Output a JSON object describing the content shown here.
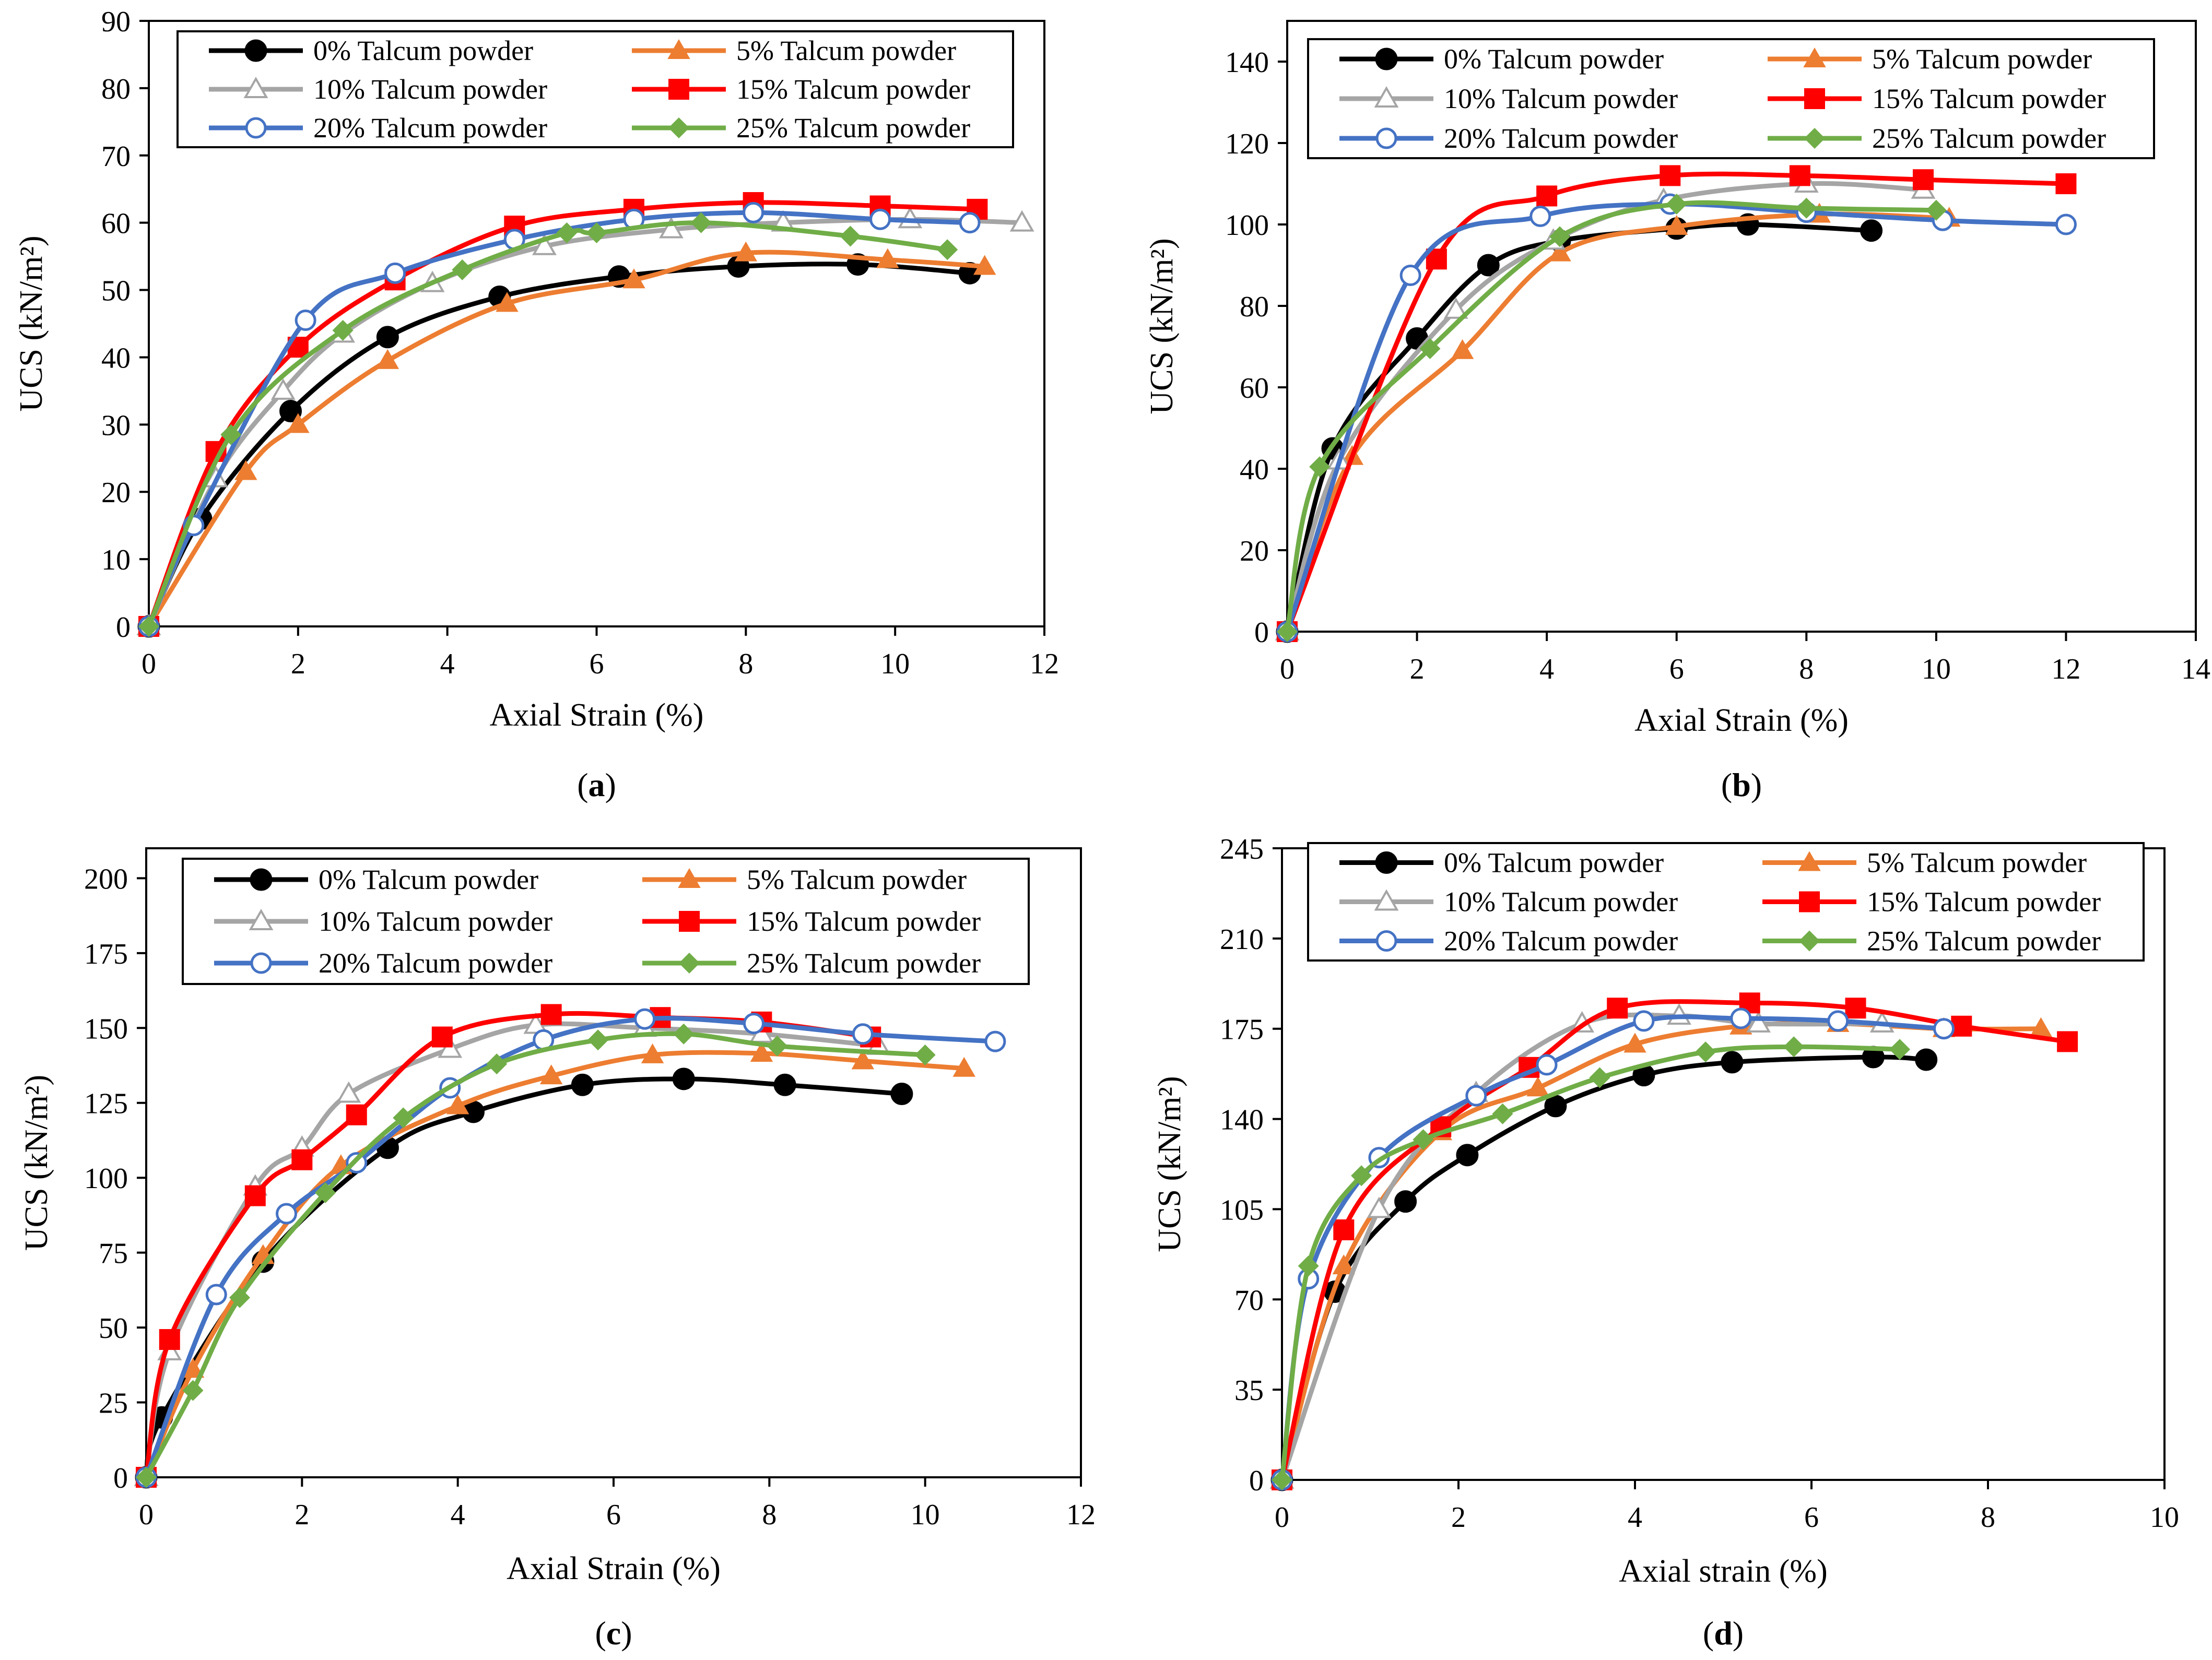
{
  "series_styles": [
    {
      "color": "#000000",
      "marker": "circle-filled"
    },
    {
      "color": "#ED7D31",
      "marker": "triangle-filled"
    },
    {
      "color": "#A5A5A5",
      "marker": "triangle-open"
    },
    {
      "color": "#FF0000",
      "marker": "square-filled"
    },
    {
      "color": "#4472C4",
      "marker": "circle-open"
    },
    {
      "color": "#70AD47",
      "marker": "diamond-filled"
    }
  ],
  "chart_data": [
    {
      "type": "line",
      "panel_label": "a",
      "xlabel": "Axial Strain (%)",
      "ylabel": "UCS (kN/m²)",
      "xlim": [
        0,
        12
      ],
      "ylim": [
        0,
        90
      ],
      "xticks": [
        0,
        2,
        4,
        6,
        8,
        10,
        12
      ],
      "yticks": [
        0,
        10,
        20,
        30,
        40,
        50,
        60,
        70,
        80,
        90
      ],
      "legend_position": "top",
      "series": [
        {
          "name": "0% Talcum powder",
          "x": [
            0,
            0.7,
            1.9,
            3.2,
            4.7,
            6.3,
            7.9,
            9.5,
            11.0
          ],
          "y": [
            0,
            16,
            32,
            43,
            49,
            52,
            53.5,
            53.8,
            52.5
          ]
        },
        {
          "name": "5% Talcum powder",
          "x": [
            0,
            1.3,
            2.0,
            3.2,
            4.8,
            6.5,
            8.0,
            9.9,
            11.2
          ],
          "y": [
            0,
            23,
            30,
            39.5,
            48,
            51.5,
            55.5,
            54.5,
            53.5
          ]
        },
        {
          "name": "10% Talcum powder",
          "x": [
            0,
            0.9,
            1.8,
            2.6,
            3.8,
            5.3,
            7.0,
            8.5,
            10.2,
            11.7
          ],
          "y": [
            0,
            22,
            35,
            43.5,
            51,
            56.5,
            59,
            60,
            60.5,
            60
          ]
        },
        {
          "name": "15% Talcum powder",
          "x": [
            0,
            0.9,
            2.0,
            3.3,
            4.9,
            6.5,
            8.1,
            9.8,
            11.1
          ],
          "y": [
            0,
            26,
            41.5,
            51.5,
            59.5,
            62,
            63,
            62.5,
            62
          ]
        },
        {
          "name": "20% Talcum powder",
          "x": [
            0,
            0.6,
            2.1,
            3.3,
            4.9,
            6.5,
            8.1,
            9.8,
            11.0
          ],
          "y": [
            0,
            15,
            45.5,
            52.5,
            57.5,
            60.5,
            61.5,
            60.5,
            60
          ]
        },
        {
          "name": "25% Talcum powder",
          "x": [
            0,
            1.1,
            2.6,
            4.2,
            5.6,
            6.0,
            7.4,
            9.4,
            10.7
          ],
          "y": [
            0,
            28.5,
            44,
            53,
            58.5,
            58.5,
            60,
            58,
            56
          ]
        }
      ]
    },
    {
      "type": "line",
      "panel_label": "b",
      "xlabel": "Axial Strain (%)",
      "ylabel": "UCS (kN/m²)",
      "xlim": [
        0,
        14
      ],
      "ylim": [
        0,
        150
      ],
      "xticks": [
        0,
        2,
        4,
        6,
        8,
        10,
        12,
        14
      ],
      "yticks": [
        0,
        20,
        40,
        60,
        80,
        100,
        120,
        140
      ],
      "legend_position": "top",
      "series": [
        {
          "name": "0% Talcum powder",
          "x": [
            0,
            0.7,
            2.0,
            3.1,
            4.2,
            6.0,
            7.1,
            9.0
          ],
          "y": [
            0,
            45,
            72,
            90,
            96,
            99,
            100,
            98.5
          ]
        },
        {
          "name": "5% Talcum powder",
          "x": [
            0,
            1.0,
            2.7,
            4.2,
            6.0,
            8.2,
            10.2
          ],
          "y": [
            0,
            43,
            69,
            93,
            99.5,
            102.5,
            101.5
          ]
        },
        {
          "name": "10% Talcum powder",
          "x": [
            0,
            0.8,
            2.6,
            4.1,
            5.8,
            8.0,
            9.8
          ],
          "y": [
            0,
            42,
            79,
            96,
            106,
            110,
            108.5
          ]
        },
        {
          "name": "15% Talcum powder",
          "x": [
            0,
            2.3,
            4.0,
            5.9,
            7.9,
            9.8,
            12.0
          ],
          "y": [
            0,
            91.5,
            107,
            112,
            112,
            111,
            110
          ]
        },
        {
          "name": "20% Talcum powder",
          "x": [
            0,
            1.9,
            3.9,
            5.9,
            8.0,
            10.1,
            12.0
          ],
          "y": [
            0,
            87.5,
            102,
            105,
            103,
            101,
            100
          ]
        },
        {
          "name": "25% Talcum powder",
          "x": [
            0,
            0.5,
            2.2,
            4.2,
            6.0,
            8.0,
            10.0
          ],
          "y": [
            0,
            40.5,
            69.5,
            97,
            105,
            104,
            103.5
          ]
        }
      ]
    },
    {
      "type": "line",
      "panel_label": "c",
      "xlabel": "Axial Strain (%)",
      "ylabel": "UCS (kN/m²)",
      "xlim": [
        0,
        12
      ],
      "ylim": [
        0,
        210
      ],
      "xticks": [
        0,
        2,
        4,
        6,
        8,
        10,
        12
      ],
      "yticks": [
        0,
        25,
        50,
        75,
        100,
        125,
        150,
        175,
        200
      ],
      "legend_position": "top",
      "series": [
        {
          "name": "0% Talcum powder",
          "x": [
            0,
            0.2,
            1.5,
            3.1,
            4.2,
            5.6,
            6.9,
            8.2,
            9.7
          ],
          "y": [
            0,
            20,
            72,
            110,
            122,
            131,
            133,
            131,
            128
          ]
        },
        {
          "name": "5% Talcum powder",
          "x": [
            0,
            0.6,
            1.5,
            2.5,
            4.0,
            5.2,
            6.5,
            7.9,
            9.2,
            10.5
          ],
          "y": [
            0,
            36,
            74,
            104,
            124,
            134,
            141,
            141.5,
            139,
            136.5
          ]
        },
        {
          "name": "10% Talcum powder",
          "x": [
            0,
            0.3,
            1.4,
            2.0,
            2.6,
            3.9,
            5.0,
            6.4,
            7.9,
            9.4
          ],
          "y": [
            0,
            42,
            97,
            110,
            128,
            143,
            151,
            150,
            148,
            144
          ]
        },
        {
          "name": "15% Talcum powder",
          "x": [
            0,
            0.3,
            1.4,
            2.0,
            2.7,
            3.8,
            5.2,
            6.6,
            7.9,
            9.3
          ],
          "y": [
            0,
            46,
            94,
            106,
            121,
            147,
            154.5,
            153.5,
            152,
            147
          ]
        },
        {
          "name": "20% Talcum powder",
          "x": [
            0,
            0.9,
            1.8,
            2.7,
            3.9,
            5.1,
            6.4,
            7.8,
            9.2,
            10.9
          ],
          "y": [
            0,
            61,
            88,
            105,
            130,
            146,
            153,
            151.5,
            148,
            145.5
          ]
        },
        {
          "name": "25% Talcum powder",
          "x": [
            0,
            0.6,
            1.2,
            2.3,
            3.3,
            4.5,
            5.8,
            6.9,
            8.1,
            10.0
          ],
          "y": [
            0,
            29,
            60,
            95,
            120,
            138,
            146,
            148,
            144,
            141
          ]
        }
      ]
    },
    {
      "type": "line",
      "panel_label": "d",
      "xlabel": "Axial strain (%)",
      "ylabel": "UCS (kN/m²)",
      "xlim": [
        0,
        10
      ],
      "ylim": [
        0,
        245
      ],
      "xticks": [
        0,
        2,
        4,
        6,
        8,
        10
      ],
      "yticks": [
        0,
        35,
        70,
        105,
        140,
        175,
        210,
        245
      ],
      "legend_position": "top",
      "series": [
        {
          "name": "0% Talcum powder",
          "x": [
            0,
            0.6,
            1.4,
            2.1,
            3.1,
            4.1,
            5.1,
            6.7,
            7.3
          ],
          "y": [
            0,
            73,
            108,
            126,
            145,
            157,
            162,
            164,
            163
          ]
        },
        {
          "name": "5% Talcum powder",
          "x": [
            0,
            0.7,
            1.8,
            2.9,
            4.0,
            5.2,
            6.3,
            7.5,
            8.6
          ],
          "y": [
            0,
            83,
            135,
            152,
            169,
            176,
            177,
            175,
            175
          ]
        },
        {
          "name": "10% Talcum powder",
          "x": [
            0,
            1.1,
            2.2,
            3.4,
            4.5,
            5.4,
            6.8
          ],
          "y": [
            0,
            105,
            150,
            177,
            180,
            177,
            177
          ]
        },
        {
          "name": "15% Talcum powder",
          "x": [
            0,
            0.7,
            1.8,
            2.8,
            3.8,
            5.3,
            6.5,
            7.7,
            8.9
          ],
          "y": [
            0,
            97,
            137,
            160,
            183,
            185,
            183,
            176,
            170
          ]
        },
        {
          "name": "20% Talcum powder",
          "x": [
            0,
            0.3,
            1.1,
            2.2,
            3.0,
            4.1,
            5.2,
            6.3,
            7.5
          ],
          "y": [
            0,
            78,
            125,
            149,
            161,
            178,
            179,
            178,
            175
          ]
        },
        {
          "name": "25% Talcum powder",
          "x": [
            0,
            0.3,
            0.9,
            1.6,
            2.5,
            3.6,
            4.8,
            5.8,
            7.0
          ],
          "y": [
            0,
            83,
            118,
            132,
            142,
            156,
            166,
            168,
            167
          ]
        }
      ]
    }
  ]
}
